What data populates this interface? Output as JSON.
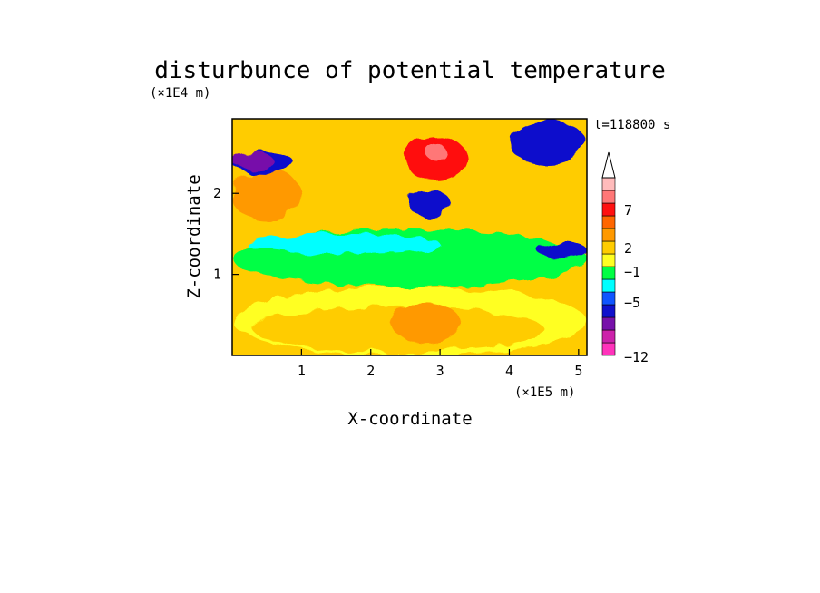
{
  "chart_data": {
    "type": "heatmap",
    "title": "disturbunce of potential temperature",
    "time_label": "t=118800 s",
    "xlabel": "X-coordinate",
    "ylabel": "Z-coordinate",
    "x_unit": "(×1E5 m)",
    "y_unit": "(×1E4 m)",
    "xlim": [
      0,
      5.12
    ],
    "ylim": [
      0,
      2.92
    ],
    "x_ticks": [
      "1",
      "2",
      "3",
      "4",
      "5"
    ],
    "y_ticks": [
      "1",
      "2"
    ],
    "x_tick_values": [
      1,
      2,
      3,
      4,
      5
    ],
    "y_tick_values": [
      1,
      2
    ],
    "colorbar": {
      "labels": [
        "7",
        "2",
        "−1",
        "−5",
        "−12"
      ],
      "colors": [
        "#ff33bb",
        "#cc22aa",
        "#7711aa",
        "#1010cc",
        "#1055ff",
        "#00ffff",
        "#00ff44",
        "#ffff22",
        "#ffcc00",
        "#ff9900",
        "#ff6600",
        "#ff1010",
        "#ff7777",
        "#ffbbbb"
      ],
      "extend": "max"
    },
    "regions": [
      {
        "x": [
          0.0,
          5.12
        ],
        "z": [
          0.0,
          0.85
        ],
        "level": "1 to 2",
        "color": "#ffff22"
      },
      {
        "x": [
          0.3,
          4.5
        ],
        "z": [
          0.05,
          0.6
        ],
        "level": "2 to 4",
        "color": "#ffcc00"
      },
      {
        "x": [
          2.3,
          3.3
        ],
        "z": [
          0.15,
          0.65
        ],
        "level": "4 to 5",
        "color": "#ff9900"
      },
      {
        "x": [
          0.0,
          5.12
        ],
        "z": [
          0.85,
          1.55
        ],
        "level": "0 to 1",
        "color": "#00ff44"
      },
      {
        "x": [
          0.2,
          3.0
        ],
        "z": [
          1.25,
          1.5
        ],
        "level": "-1 to 0",
        "color": "#00ffff"
      },
      {
        "x": [
          0.0,
          1.0
        ],
        "z": [
          1.65,
          2.3
        ],
        "level": "4 to 5",
        "color": "#ff9900"
      },
      {
        "x": [
          0.0,
          0.9
        ],
        "z": [
          2.25,
          2.5
        ],
        "level": "-5 to -3",
        "color": "#1010cc"
      },
      {
        "x": [
          0.0,
          0.6
        ],
        "z": [
          2.3,
          2.5
        ],
        "level": "-7 to -5",
        "color": "#7711aa"
      },
      {
        "x": [
          2.5,
          3.4
        ],
        "z": [
          2.15,
          2.7
        ],
        "level": "5 to 7",
        "color": "#ff1010"
      },
      {
        "x": [
          2.8,
          3.1
        ],
        "z": [
          2.4,
          2.6
        ],
        "level": "7 to 9",
        "color": "#ff7777"
      },
      {
        "x": [
          2.55,
          3.15
        ],
        "z": [
          1.7,
          2.05
        ],
        "level": "-5 to -3",
        "color": "#1010cc"
      },
      {
        "x": [
          4.0,
          5.1
        ],
        "z": [
          2.35,
          2.9
        ],
        "level": "-5 to -3",
        "color": "#1010cc"
      },
      {
        "x": [
          4.4,
          5.12
        ],
        "z": [
          1.2,
          1.4
        ],
        "level": "-5 to -3",
        "color": "#1010cc"
      }
    ]
  }
}
